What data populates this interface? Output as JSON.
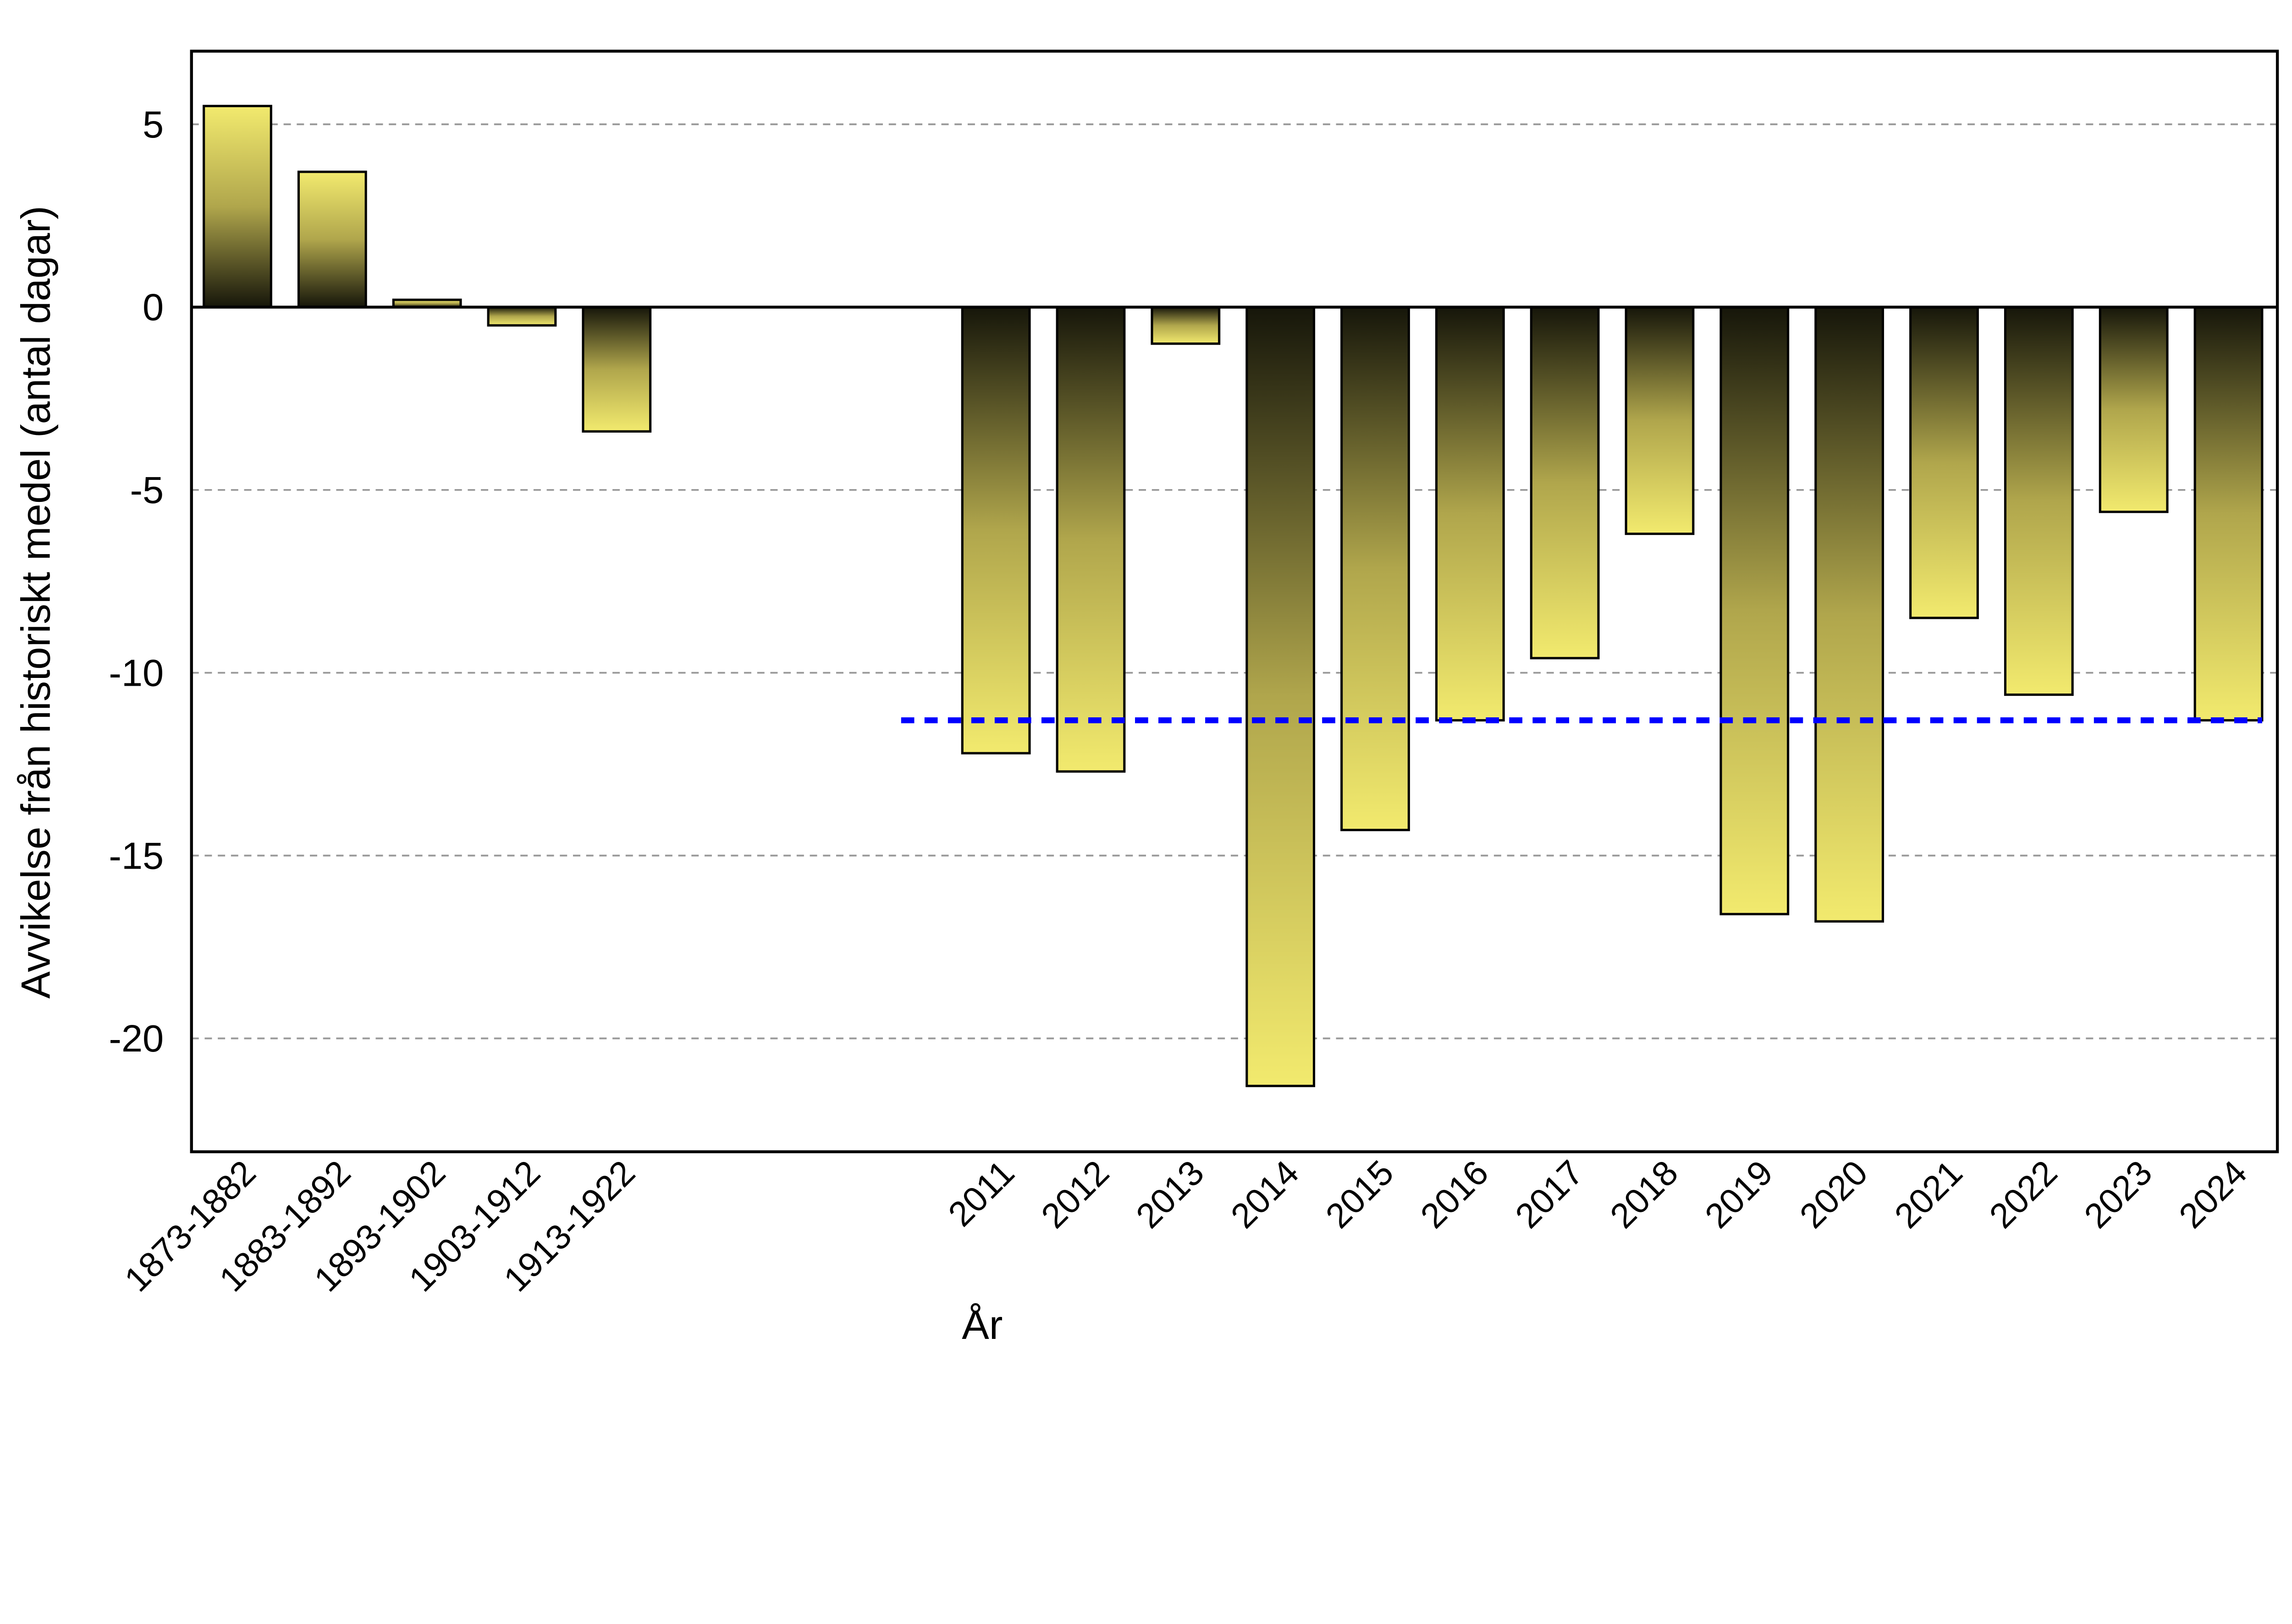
{
  "chart_data": {
    "type": "bar",
    "title": "",
    "xlabel": "År",
    "ylabel": "Avvikelse från historiskt medel (antal dagar)",
    "ylim": [
      -23.1,
      7.0
    ],
    "yticks": [
      5,
      0,
      -5,
      -10,
      -15,
      -20
    ],
    "grid": "horizontal dashed",
    "categories": [
      "1873-1882",
      "1883-1892",
      "1893-1902",
      "1903-1912",
      "1913-1922",
      "",
      "",
      "",
      "2011",
      "2012",
      "2013",
      "2014",
      "2015",
      "2016",
      "2017",
      "2018",
      "2019",
      "2020",
      "2021",
      "2022",
      "2023",
      "2024"
    ],
    "values": [
      5.5,
      3.7,
      0.2,
      -0.5,
      -3.4,
      null,
      null,
      null,
      -12.2,
      -12.7,
      -1.0,
      -21.3,
      -14.3,
      -11.3,
      -9.6,
      -6.2,
      -16.6,
      -16.8,
      -8.5,
      -10.6,
      -5.6,
      -11.3
    ],
    "reference_line": {
      "value": -11.3,
      "from": "2011",
      "to": "2024",
      "color": "#0000ff",
      "style": "dashed"
    },
    "colors": {
      "bar_light": "#f2ea6e",
      "bar_dark": "#1a1a0a",
      "grid": "#999999"
    }
  }
}
